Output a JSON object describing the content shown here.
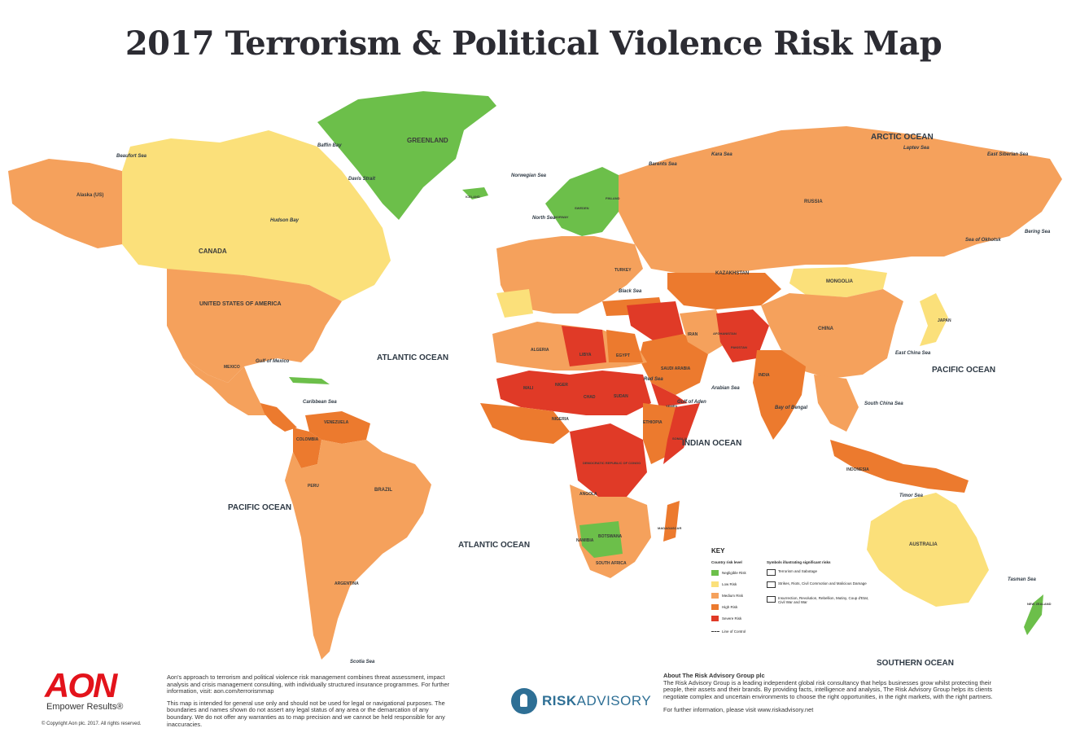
{
  "title": "2017 Terrorism & Political Violence Risk Map",
  "colors": {
    "negligible": "#6cbf4a",
    "low": "#fbe07a",
    "medium": "#f5a15c",
    "high": "#ec7a2e",
    "severe": "#e03a27",
    "ocean": "#ffffff",
    "brand_aon": "#e3131b",
    "brand_risk_advisory": "#2e6f95"
  },
  "regions": {
    "greenland": "GREENLAND",
    "canada": "CANADA",
    "usa": "UNITED STATES OF AMERICA",
    "alaska": "Alaska (US)",
    "russia": "RUSSIA",
    "kazakhstan": "KAZAKHSTAN",
    "mongolia": "MONGOLIA",
    "china": "CHINA",
    "india": "INDIA",
    "japan": "JAPAN",
    "brazil": "BRAZIL",
    "argentina": "ARGENTINA",
    "peru": "PERU",
    "colombia": "COLOMBIA",
    "venezuela": "VENEZUELA",
    "mexico": "MEXICO",
    "algeria": "ALGERIA",
    "libya": "LIBYA",
    "egypt": "EGYPT",
    "mali": "MALI",
    "niger": "NIGER",
    "chad": "CHAD",
    "sudan": "SUDAN",
    "nigeria": "NIGERIA",
    "ethiopia": "ETHIOPIA",
    "drc": "DEMOCRATIC REPUBLIC OF CONGO",
    "angola": "ANGOLA",
    "namibia": "NAMIBIA",
    "botswana": "BOTSWANA",
    "south_africa": "SOUTH AFRICA",
    "madagascar": "MADAGASCAR",
    "saudi_arabia": "SAUDI ARABIA",
    "iran": "IRAN",
    "afghanistan": "AFGHANISTAN",
    "pakistan": "PAKISTAN",
    "australia": "AUSTRALIA",
    "new_zealand": "NEW ZEALAND",
    "indonesia": "INDONESIA",
    "norway": "NORWAY",
    "sweden": "SWEDEN",
    "finland": "FINLAND",
    "iceland": "ICELAND",
    "turkey": "TURKEY",
    "yemen": "YEMEN",
    "somalia": "SOMALIA"
  },
  "oceans": {
    "arctic": "ARCTIC OCEAN",
    "atlantic_north": "ATLANTIC OCEAN",
    "atlantic_south": "ATLANTIC OCEAN",
    "pacific_east": "PACIFIC OCEAN",
    "pacific_west": "PACIFIC OCEAN",
    "indian": "INDIAN OCEAN",
    "southern": "SOUTHERN OCEAN"
  },
  "seas": {
    "beaufort": "Beaufort Sea",
    "baffin": "Baffin Bay",
    "davis": "Davis Strait",
    "hudson": "Hudson Bay",
    "norwegian": "Norwegian Sea",
    "north": "North Sea",
    "barents": "Barents Sea",
    "kara": "Kara Sea",
    "laptev": "Laptev Sea",
    "east_siberian": "East Siberian Sea",
    "okhotsk": "Sea of Okhotsk",
    "bering": "Bering Sea",
    "gulf_mexico": "Gulf of Mexico",
    "caribbean": "Caribbean Sea",
    "black": "Black Sea",
    "red": "Red Sea",
    "arabian": "Arabian Sea",
    "bay_bengal": "Bay of Bengal",
    "south_china": "South China Sea",
    "east_china": "East China Sea",
    "timor": "Timor Sea",
    "tasman": "Tasman Sea",
    "scotia": "Scotia Sea",
    "gulf_aden": "Gulf of Aden"
  },
  "key": {
    "title": "KEY",
    "levels_heading": "Country risk level",
    "symbols_heading": "Symbols illustrating significant risks",
    "levels": [
      {
        "label": "Negligible Risk",
        "color": "#6cbf4a"
      },
      {
        "label": "Low Risk",
        "color": "#fbe07a"
      },
      {
        "label": "Medium Risk",
        "color": "#f5a15c"
      },
      {
        "label": "High Risk",
        "color": "#ec7a2e"
      },
      {
        "label": "Severe Risk",
        "color": "#e03a27"
      }
    ],
    "symbols": [
      {
        "label": "Terrorism and Sabotage",
        "icon": "bomb-icon"
      },
      {
        "label": "Strikes, Riots, Civil Commotion and Malicious Damage",
        "icon": "riot-icon"
      },
      {
        "label": "Insurrection, Revolution, Rebellion, Mutiny, Coup d'Etat, Civil War and War",
        "icon": "war-icon"
      }
    ],
    "line_of_control": "Line of Control"
  },
  "footer": {
    "aon_logo": "AON",
    "aon_tagline": "Empower Results®",
    "aon_copyright": "© Copyright Aon plc. 2017. All rights reserved.",
    "aon_para1": "Aon's approach to terrorism and political violence risk management combines threat assessment, impact analysis and crisis management consulting, with individually structured insurance programmes. For further information, visit: aon.com/terrorismmap",
    "aon_para2": "This map is intended for general use only and should not be used for legal or navigational purposes. The boundaries and names shown do not assert any legal status of any area or the demarcation of any boundary. We do not offer any warranties as to map precision and we cannot be held responsible for any inaccuracies.",
    "ra_brand_bold": "RISK",
    "ra_brand_rest": "ADVISORY",
    "ra_heading": "About The Risk Advisory Group plc",
    "ra_para": "The Risk Advisory Group is a leading independent global risk consultancy that helps businesses grow whilst protecting their people, their assets and their brands. By providing facts, intelligence and analysis, The Risk Advisory Group helps its clients negotiate complex and uncertain environments to choose the right opportunities, in the right markets, with the right partners.",
    "ra_link": "For further information, please visit www.riskadvisory.net"
  }
}
